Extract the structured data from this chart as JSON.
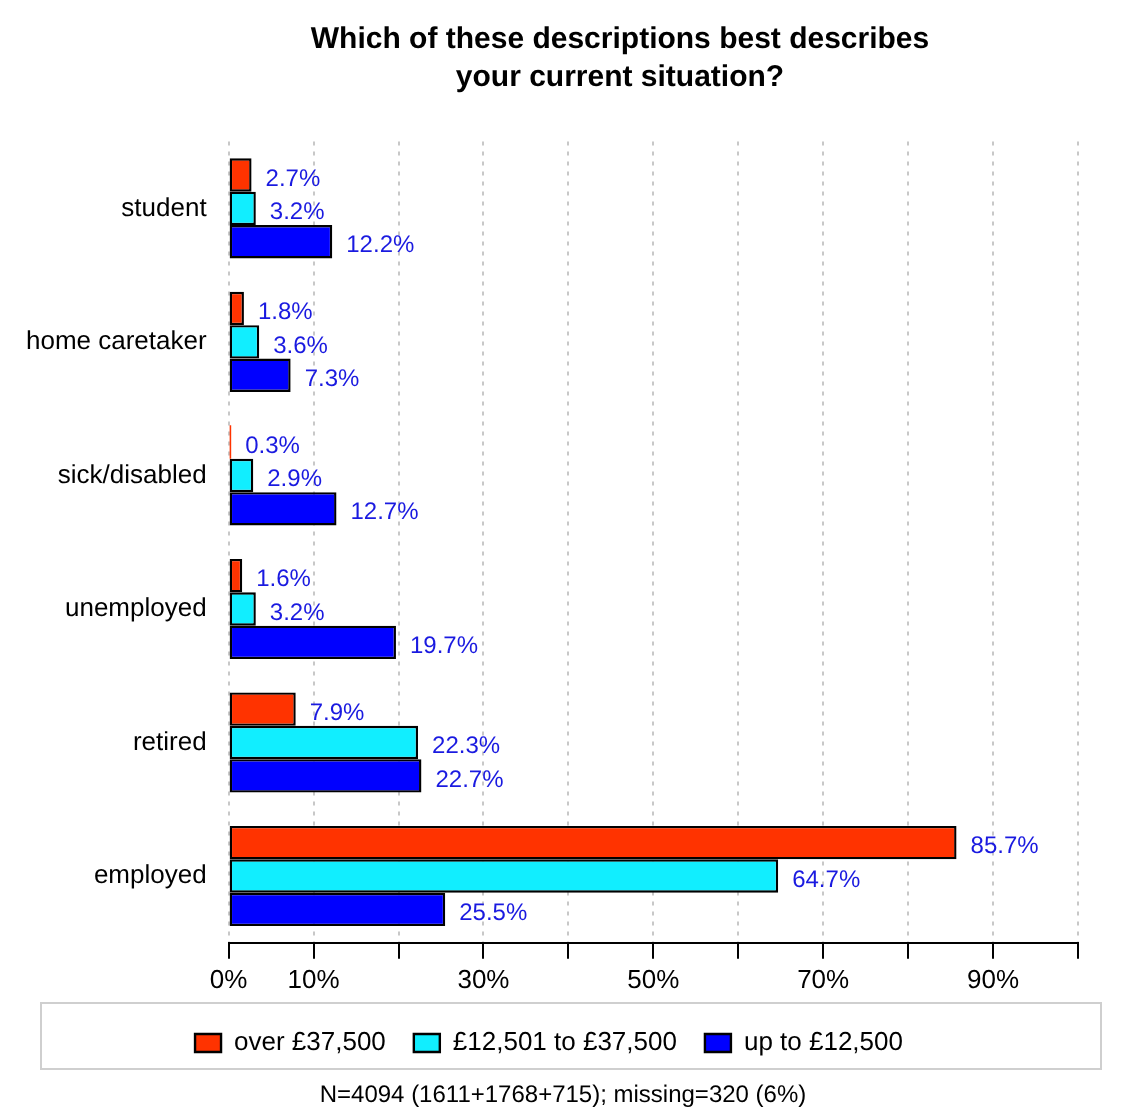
{
  "chart_data": {
    "type": "bar",
    "orientation": "horizontal",
    "title": "Which of these descriptions best describes your current situation?",
    "categories": [
      "student",
      "home caretaker",
      "sick/disabled",
      "unemployed",
      "retired",
      "employed"
    ],
    "series": [
      {
        "name": "over £37,500",
        "color": "#ff3300",
        "values": [
          2.7,
          1.8,
          0.3,
          1.6,
          7.9,
          85.7
        ],
        "value_labels": [
          "2.7%",
          "1.8%",
          "0.3%",
          "1.6%",
          "7.9%",
          "85.7%"
        ]
      },
      {
        "name": "£12,501 to £37,500",
        "color": "#11eeff",
        "values": [
          3.2,
          3.6,
          2.9,
          3.2,
          22.3,
          64.7
        ],
        "value_labels": [
          "3.2%",
          "3.6%",
          "2.9%",
          "3.2%",
          "22.3%",
          "64.7%"
        ]
      },
      {
        "name": "up to £12,500",
        "color": "#0000ff",
        "values": [
          12.2,
          7.3,
          12.7,
          19.7,
          22.7,
          25.5
        ],
        "value_labels": [
          "12.2%",
          "7.3%",
          "12.7%",
          "19.7%",
          "22.7%",
          "25.5%"
        ]
      }
    ],
    "xlim": [
      0,
      100
    ],
    "xticks": [
      {
        "value": 0,
        "label": "0%"
      },
      {
        "value": 10,
        "label": "10%"
      },
      {
        "value": 20,
        "label": null
      },
      {
        "value": 30,
        "label": "30%"
      },
      {
        "value": 40,
        "label": null
      },
      {
        "value": 50,
        "label": "50%"
      },
      {
        "value": 60,
        "label": null
      },
      {
        "value": 70,
        "label": "70%"
      },
      {
        "value": 80,
        "label": null
      },
      {
        "value": 90,
        "label": "90%"
      },
      {
        "value": 100,
        "label": null
      }
    ],
    "grid": "x",
    "legend": "bottom",
    "annotations": [
      "N=4094 (1611+1768+715); missing=320 (6%)"
    ]
  }
}
